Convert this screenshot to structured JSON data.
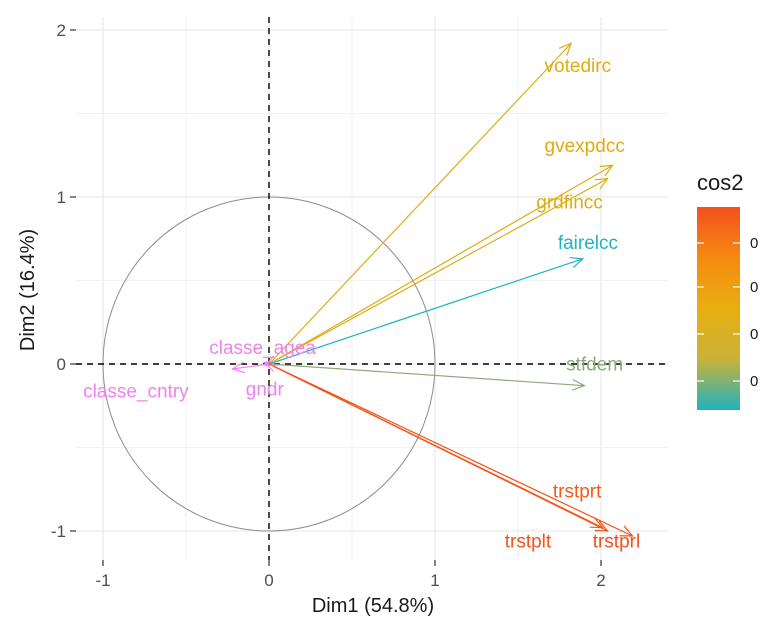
{
  "chart_data": {
    "type": "scatter",
    "subtype": "pca-variable-correlation-circle",
    "title": "",
    "xlabel": "Dim1 (54.8%)",
    "ylabel": "Dim2 (16.4%)",
    "xlim": [
      -1.05,
      2.35
    ],
    "ylim": [
      -1.1,
      2.1
    ],
    "x_ticks": [
      -1,
      0,
      1,
      2
    ],
    "y_ticks": [
      -1,
      0,
      1,
      2
    ],
    "x_tick_labels": [
      "-1",
      "0",
      "1",
      "2"
    ],
    "y_tick_labels": [
      "-1",
      "0",
      "1",
      "2"
    ],
    "grid": true,
    "unit_circle": true,
    "zero_lines": "dashed",
    "variables": [
      {
        "name": "votedirc",
        "x": 1.82,
        "y": 1.92,
        "color": "#E0AC12"
      },
      {
        "name": "gvexpdcc",
        "x": 2.07,
        "y": 1.19,
        "color": "#E2AA10"
      },
      {
        "name": "grdfincc",
        "x": 2.04,
        "y": 1.11,
        "color": "#D9AE14"
      },
      {
        "name": "fairelcc",
        "x": 1.89,
        "y": 0.63,
        "color": "#1FB4C0"
      },
      {
        "name": "stfdem",
        "x": 1.9,
        "y": -0.13,
        "color": "#8DA97C"
      },
      {
        "name": "trstprt",
        "x": 2.01,
        "y": -0.98,
        "color": "#F45A1A"
      },
      {
        "name": "trstplt",
        "x": 2.04,
        "y": -1.0,
        "color": "#F4541A"
      },
      {
        "name": "trstprl",
        "x": 2.19,
        "y": -1.03,
        "color": "#F4501A"
      },
      {
        "name": "classe_agea",
        "x": -0.03,
        "y": 0.01,
        "color": "#EE82EE"
      },
      {
        "name": "classe_cntry",
        "x": -0.22,
        "y": -0.03,
        "color": "#EE82EE"
      },
      {
        "name": "gndr",
        "x": -0.02,
        "y": -0.01,
        "color": "#EE82EE"
      }
    ],
    "labels": [
      {
        "var": "votedirc",
        "text": "votedirc",
        "x": 1.66,
        "y": 1.75
      },
      {
        "var": "gvexpdcc",
        "text": "gvexpdcc",
        "x": 1.66,
        "y": 1.27
      },
      {
        "var": "grdfincc",
        "text": "grdfincc",
        "x": 1.61,
        "y": 0.93
      },
      {
        "var": "fairelcc",
        "text": "fairelcc",
        "x": 1.74,
        "y": 0.69
      },
      {
        "var": "stfdem",
        "x": 1.79,
        "text": "stfdem",
        "y": -0.04
      },
      {
        "var": "trstprt",
        "text": "trstprt",
        "x": 1.71,
        "y": -0.8
      },
      {
        "var": "trstplt",
        "text": "trstplt",
        "x": 1.42,
        "y": -1.1
      },
      {
        "var": "trstprl",
        "text": "trstprl",
        "x": 1.95,
        "y": -1.1
      },
      {
        "var": "classe_agea",
        "text": "classe_agea",
        "x": -0.36,
        "y": 0.06
      },
      {
        "var": "classe_cntry",
        "text": "classe_cntry",
        "x": -1.12,
        "y": -0.2
      },
      {
        "var": "gndr",
        "text": "gndr",
        "x": -0.14,
        "y": -0.19
      }
    ],
    "legend": {
      "title": "cos2",
      "position": "right",
      "gradient": [
        "#20B2BF",
        "#C9B23A",
        "#E8AE0E",
        "#F58A12",
        "#F4501E"
      ],
      "tick_labels": [
        "0",
        "0",
        "0",
        "0"
      ]
    }
  }
}
